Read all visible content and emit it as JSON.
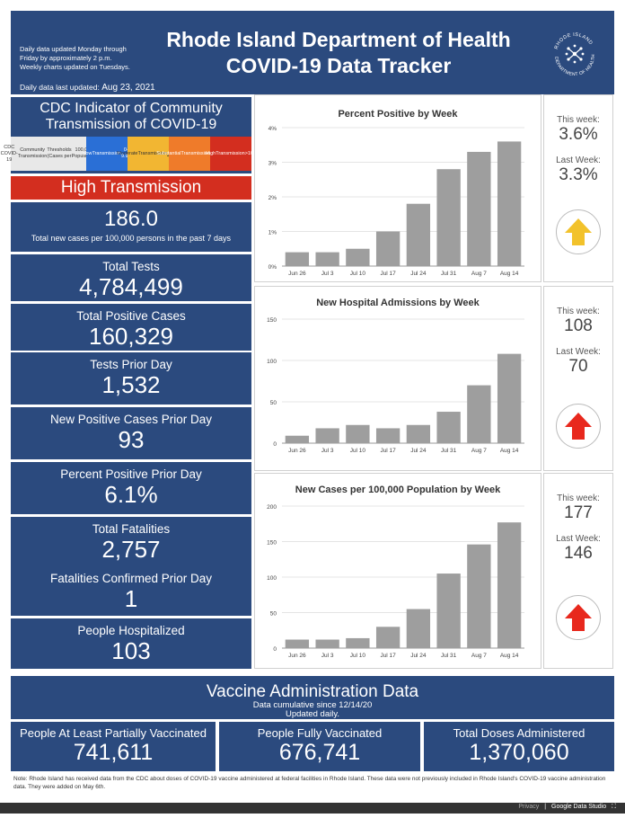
{
  "header": {
    "note_line1": "Daily data updated Monday through",
    "note_line2": "Friday by approximately 2 p.m.",
    "note_line3": "Weekly charts updated on Tuesdays.",
    "date_label": "Daily data last updated:",
    "date_value": "Aug 23, 2021",
    "title_line1": "Rhode Island Department of Health",
    "title_line2": "COVID-19 Data Tracker",
    "seal_text_top": "RHODE ISLAND",
    "seal_text_bottom": "DEPARTMENT OF HEALTH"
  },
  "cdc": {
    "title_line1": "CDC Indicator of Community",
    "title_line2": "Transmission of COVID-19",
    "legend": [
      {
        "text1": "CDC COVID-19",
        "text2": "Community Transmission",
        "text3": "Thresholds (Cases per",
        "text4": "100,000 Population)",
        "color": "#e8e8e8"
      },
      {
        "text1": "Low",
        "text2": "Transmission",
        "text3": "0-9.99",
        "text4": "",
        "color": "#2a6fd6"
      },
      {
        "text1": "Moderate",
        "text2": "Transmission",
        "text3": "10-49.99",
        "text4": "",
        "color": "#f2b632"
      },
      {
        "text1": "Substantial",
        "text2": "Transmission",
        "text3": "50-99.99",
        "text4": "",
        "color": "#ef7b2a"
      },
      {
        "text1": "High",
        "text2": "Transmission",
        "text3": ">100",
        "text4": "",
        "color": "#d32e1f"
      }
    ],
    "level": "High Transmission",
    "level_color": "#d32e1f",
    "rate": "186.0",
    "rate_caption": "Total new cases per 100,000 persons in the past 7 days"
  },
  "tiles": [
    {
      "label": "Total Tests",
      "value": "4,784,499"
    },
    {
      "label": "Total Positive Cases",
      "value": "160,329"
    },
    {
      "label": "Tests Prior Day",
      "value": "1,532"
    },
    {
      "label": "New Positive Cases Prior Day",
      "value": "93"
    },
    {
      "label": "Percent Positive Prior Day",
      "value": "6.1%"
    },
    {
      "label": "Total Fatalities",
      "value": "2,757"
    },
    {
      "label": "Fatalities Confirmed Prior Day",
      "value": "1"
    },
    {
      "label": "People Hospitalized",
      "value": "103"
    }
  ],
  "side": [
    {
      "this_label": "This week:",
      "this_value": "3.6%",
      "last_label": "Last Week:",
      "last_value": "3.3%",
      "arrow": "arrow-up-yellow-icon",
      "arrow_color": "#f2c22b"
    },
    {
      "this_label": "This week:",
      "this_value": "108",
      "last_label": "Last Week:",
      "last_value": "70",
      "arrow": "arrow-up-red-icon",
      "arrow_color": "#e8281d"
    },
    {
      "this_label": "This week:",
      "this_value": "177",
      "last_label": "Last Week:",
      "last_value": "146",
      "arrow": "arrow-up-red-icon",
      "arrow_color": "#e8281d"
    }
  ],
  "chart_data": [
    {
      "type": "bar",
      "title": "Percent Positive by Week",
      "categories": [
        "Jun 26",
        "Jul 3",
        "Jul 10",
        "Jul 17",
        "Jul 24",
        "Jul 31",
        "Aug 7",
        "Aug 14"
      ],
      "values": [
        0.4,
        0.4,
        0.5,
        1.0,
        1.8,
        2.8,
        3.3,
        3.6
      ],
      "ylim": [
        0,
        4
      ],
      "yticks": [
        0,
        1,
        2,
        3,
        4
      ],
      "ytick_labels": [
        "0%",
        "1%",
        "2%",
        "3%",
        "4%"
      ],
      "xlabel": "",
      "ylabel": "",
      "bar_color": "#9e9e9e",
      "grid": true
    },
    {
      "type": "bar",
      "title": "New Hospital Admissions by Week",
      "categories": [
        "Jun 26",
        "Jul 3",
        "Jul 10",
        "Jul 17",
        "Jul 24",
        "Jul 31",
        "Aug 7",
        "Aug 14"
      ],
      "values": [
        9,
        18,
        22,
        18,
        22,
        38,
        70,
        108
      ],
      "ylim": [
        0,
        150
      ],
      "yticks": [
        0,
        50,
        100,
        150
      ],
      "ytick_labels": [
        "0",
        "50",
        "100",
        "150"
      ],
      "xlabel": "",
      "ylabel": "",
      "bar_color": "#9e9e9e",
      "grid": true
    },
    {
      "type": "bar",
      "title": "New Cases per 100,000 Population by Week",
      "categories": [
        "Jun 26",
        "Jul 3",
        "Jul 10",
        "Jul 17",
        "Jul 24",
        "Jul 31",
        "Aug 7",
        "Aug 14"
      ],
      "values": [
        12,
        12,
        14,
        30,
        55,
        105,
        146,
        177
      ],
      "ylim": [
        0,
        200
      ],
      "yticks": [
        0,
        50,
        100,
        150,
        200
      ],
      "ytick_labels": [
        "0",
        "50",
        "100",
        "150",
        "200"
      ],
      "xlabel": "",
      "ylabel": "",
      "bar_color": "#9e9e9e",
      "grid": true
    }
  ],
  "vaccine": {
    "title": "Vaccine Administration Data",
    "sub1": "Data cumulative since 12/14/20",
    "sub2": "Updated daily.",
    "tiles": [
      {
        "label": "People At Least Partially Vaccinated",
        "value": "741,611"
      },
      {
        "label": "People Fully Vaccinated",
        "value": "676,741"
      },
      {
        "label": "Total Doses Administered",
        "value": "1,370,060"
      }
    ]
  },
  "note": "Note: Rhode Island has received data from the CDC about doses of COVID-19 vaccine administered at federal facilities in Rhode Island. These data were not previously included in Rhode Island's COVID-19 vaccine administration data. They were added on May 6th.",
  "footer": {
    "privacy": "Privacy",
    "brand": "Google Data Studio"
  }
}
